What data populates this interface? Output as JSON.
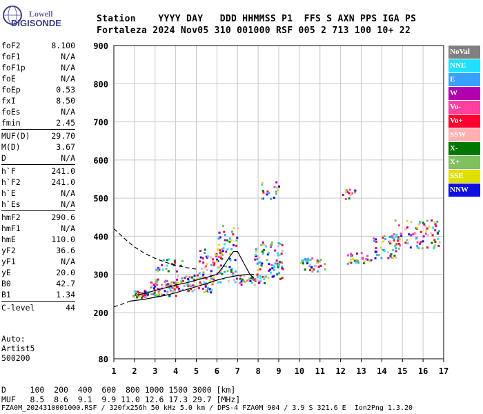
{
  "logo": {
    "line1": "Lowell",
    "line2": "DIGISONDE"
  },
  "header": {
    "labels": "Station    YYYY DAY   DDD HHMMSS P1  FFS S AXN PPS IGA PS",
    "values": "Fortaleza 2024 Nov05 310 001000 RSF 005 2 713 100 10+ 22"
  },
  "params": [
    [
      {
        "k": "foF2",
        "v": "8.100"
      },
      {
        "k": "foF1",
        "v": "N/A"
      },
      {
        "k": "foF1p",
        "v": "N/A"
      },
      {
        "k": "foE",
        "v": "N/A"
      },
      {
        "k": "foEp",
        "v": "0.53"
      },
      {
        "k": "fxI",
        "v": "8.50"
      },
      {
        "k": "foEs",
        "v": "N/A"
      },
      {
        "k": "fmin",
        "v": "2.45"
      }
    ],
    [
      {
        "k": "MUF(D)",
        "v": "29.70"
      },
      {
        "k": "M(D)",
        "v": "3.67"
      },
      {
        "k": "D",
        "v": "N/A"
      }
    ],
    [
      {
        "k": "h`F",
        "v": "241.0"
      },
      {
        "k": "h`F2",
        "v": "241.0"
      },
      {
        "k": "h`E",
        "v": "N/A"
      },
      {
        "k": "h`Es",
        "v": "N/A"
      }
    ],
    [
      {
        "k": "hmF2",
        "v": "290.6"
      },
      {
        "k": "hmF1",
        "v": "N/A"
      },
      {
        "k": "hmE",
        "v": "110.0"
      },
      {
        "k": "yF2",
        "v": "36.6"
      },
      {
        "k": "yF1",
        "v": "N/A"
      },
      {
        "k": "yE",
        "v": "20.0"
      },
      {
        "k": "B0",
        "v": "42.7"
      },
      {
        "k": "B1",
        "v": "1.34"
      }
    ],
    [
      {
        "k": "C-level",
        "v": "44"
      }
    ]
  ],
  "auto": {
    "l1": "Auto:",
    "l2": "Artist5",
    "l3": "500200"
  },
  "legend": [
    {
      "label": "NoVal",
      "color": "#808080"
    },
    {
      "label": "NNE",
      "color": "#20e0ff"
    },
    {
      "label": "E",
      "color": "#3aa0ff"
    },
    {
      "label": "W",
      "color": "#b000b0"
    },
    {
      "label": "Vo-",
      "color": "#ff40a0"
    },
    {
      "label": "Vo+",
      "color": "#ff0030"
    },
    {
      "label": "SSW",
      "color": "#ffb0b0"
    },
    {
      "label": "X-",
      "color": "#007800"
    },
    {
      "label": "X+",
      "color": "#80c060"
    },
    {
      "label": "SSE",
      "color": "#e0e000"
    },
    {
      "label": "NNW",
      "color": "#1010e0"
    }
  ],
  "chart_data": {
    "type": "scatter",
    "xlim": [
      1,
      17
    ],
    "ylim": [
      80,
      900
    ],
    "xticks": [
      1,
      2,
      3,
      4,
      5,
      6,
      7,
      8,
      9,
      10,
      11,
      12,
      13,
      14,
      15,
      16,
      17
    ],
    "yticks": [
      80,
      200,
      300,
      400,
      500,
      600,
      700,
      800,
      900
    ],
    "grid": true,
    "traces": [
      {
        "x": [
          2.0,
          2.5,
          3.0,
          3.5,
          4.0,
          4.5,
          5.0,
          5.5,
          6.0,
          6.3,
          6.6,
          6.8,
          7.0,
          7.3,
          7.6,
          7.8
        ],
        "y": [
          245,
          250,
          258,
          265,
          272,
          278,
          285,
          292,
          300,
          320,
          345,
          360,
          360,
          330,
          300,
          290
        ]
      },
      {
        "x": [
          1.8,
          2.5,
          3.0,
          3.5,
          4.0,
          4.5,
          5.0,
          5.5,
          6.0,
          6.5,
          7.0,
          7.5,
          7.8
        ],
        "y": [
          230,
          235,
          240,
          245,
          252,
          260,
          268,
          276,
          285,
          292,
          297,
          300,
          300
        ]
      }
    ],
    "dashed_profile": {
      "x": [
        1.0,
        1.3,
        1.6,
        2.0,
        2.5,
        3.0,
        3.5,
        4.0,
        4.5,
        5.0
      ],
      "y": [
        420,
        405,
        390,
        372,
        355,
        342,
        332,
        324,
        318,
        314
      ]
    },
    "dashed_lower": {
      "x": [
        1.0,
        1.4,
        1.8
      ],
      "y": [
        215,
        222,
        230
      ]
    },
    "echo_clusters": [
      {
        "x": [
          1.9,
          2.6
        ],
        "y": [
          240,
          260
        ],
        "n": 40
      },
      {
        "x": [
          2.6,
          4.0
        ],
        "y": [
          245,
          290
        ],
        "n": 70
      },
      {
        "x": [
          3.0,
          4.3
        ],
        "y": [
          310,
          345
        ],
        "n": 20
      },
      {
        "x": [
          4.0,
          5.8
        ],
        "y": [
          255,
          300
        ],
        "n": 70
      },
      {
        "x": [
          5.0,
          6.3
        ],
        "y": [
          300,
          370
        ],
        "n": 45
      },
      {
        "x": [
          6.0,
          7.0
        ],
        "y": [
          280,
          430
        ],
        "n": 60
      },
      {
        "x": [
          7.0,
          8.3
        ],
        "y": [
          275,
          300
        ],
        "n": 35
      },
      {
        "x": [
          7.8,
          9.2
        ],
        "y": [
          290,
          390
        ],
        "n": 80
      },
      {
        "x": [
          8.0,
          9.0
        ],
        "y": [
          500,
          545
        ],
        "n": 18
      },
      {
        "x": [
          10.0,
          11.2
        ],
        "y": [
          310,
          345
        ],
        "n": 35
      },
      {
        "x": [
          12.0,
          12.8
        ],
        "y": [
          500,
          525
        ],
        "n": 14
      },
      {
        "x": [
          12.3,
          13.5
        ],
        "y": [
          330,
          360
        ],
        "n": 30
      },
      {
        "x": [
          13.5,
          14.8
        ],
        "y": [
          345,
          405
        ],
        "n": 45
      },
      {
        "x": [
          14.5,
          16.8
        ],
        "y": [
          370,
          445
        ],
        "n": 80
      }
    ]
  },
  "bottom": {
    "line1": "D     100  200  400  600  800 1000 1500 3000 [km]",
    "line2": "MUF   8.5  8.6  9.1  9.9 11.0 12.6 17.3 29.7 [MHz]",
    "line3": "FZA0M_2024310001000.RSF / 320fx256h 50 kHz 5.0 km / DPS-4 FZA0M 904 / 3.9 S 321.6 E  Ion2Png 1.3.20"
  }
}
